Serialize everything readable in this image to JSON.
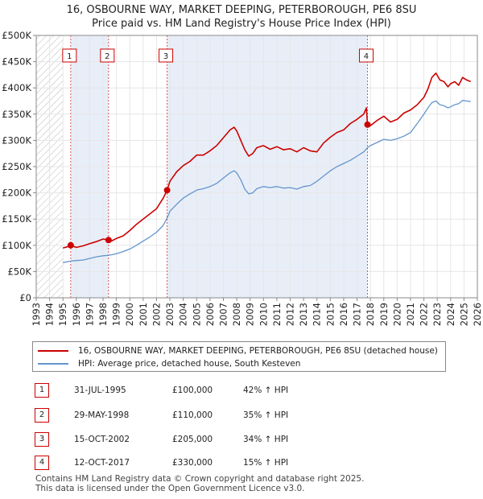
{
  "title_line1": "16, OSBOURNE WAY, MARKET DEEPING, PETERBOROUGH, PE6 8SU",
  "title_line2": "Price paid vs. HM Land Registry's House Price Index (HPI)",
  "colors": {
    "property": "#cc0000",
    "hpi": "#6495cd",
    "axis": "#888888",
    "shade": "#e8eef8",
    "hatch": "#bbbbbb",
    "marker_line": "#dd5555"
  },
  "chart_data": {
    "type": "line",
    "title": "16, OSBOURNE WAY, MARKET DEEPING, PETERBOROUGH, PE6 8SU — Price paid vs. HM Land Registry's House Price Index (HPI)",
    "xlim": [
      1993,
      2026
    ],
    "ylim": [
      0,
      500000
    ],
    "x_ticks": [
      1993,
      1994,
      1995,
      1996,
      1997,
      1998,
      1999,
      2000,
      2001,
      2002,
      2003,
      2004,
      2005,
      2006,
      2007,
      2008,
      2009,
      2010,
      2011,
      2012,
      2013,
      2014,
      2015,
      2016,
      2017,
      2018,
      2019,
      2020,
      2021,
      2022,
      2023,
      2024,
      2025,
      2026
    ],
    "y_ticks": [
      {
        "value": 0,
        "label": "£0"
      },
      {
        "value": 50000,
        "label": "£50K"
      },
      {
        "value": 100000,
        "label": "£100K"
      },
      {
        "value": 150000,
        "label": "£150K"
      },
      {
        "value": 200000,
        "label": "£200K"
      },
      {
        "value": 250000,
        "label": "£250K"
      },
      {
        "value": 300000,
        "label": "£300K"
      },
      {
        "value": 350000,
        "label": "£350K"
      },
      {
        "value": 400000,
        "label": "£400K"
      },
      {
        "value": 450000,
        "label": "£450K"
      },
      {
        "value": 500000,
        "label": "£500K"
      }
    ],
    "no_data_before": 1995.0,
    "shaded_regions": [
      [
        1995.58,
        1998.41
      ],
      [
        2002.79,
        2017.78
      ]
    ],
    "series": [
      {
        "name": "property",
        "label": "16, OSBOURNE WAY, MARKET DEEPING, PETERBOROUGH, PE6 8SU (detached house)",
        "x": [
          1995.0,
          1995.3,
          1995.58,
          1995.8,
          1996.0,
          1996.5,
          1997.0,
          1997.5,
          1998.0,
          1998.41,
          1998.6,
          1999.0,
          1999.5,
          2000.0,
          2000.5,
          2001.0,
          2001.5,
          2002.0,
          2002.5,
          2002.79,
          2003.0,
          2003.5,
          2004.0,
          2004.5,
          2005.0,
          2005.5,
          2006.0,
          2006.5,
          2007.0,
          2007.5,
          2007.8,
          2008.0,
          2008.3,
          2008.6,
          2008.9,
          2009.2,
          2009.5,
          2010.0,
          2010.5,
          2011.0,
          2011.5,
          2012.0,
          2012.5,
          2013.0,
          2013.5,
          2014.0,
          2014.5,
          2015.0,
          2015.5,
          2016.0,
          2016.5,
          2017.0,
          2017.5,
          2017.7,
          2017.78,
          2018.0,
          2018.5,
          2019.0,
          2019.5,
          2020.0,
          2020.5,
          2021.0,
          2021.5,
          2022.0,
          2022.3,
          2022.6,
          2022.9,
          2023.2,
          2023.5,
          2023.8,
          2024.0,
          2024.3,
          2024.6,
          2024.9,
          2025.2,
          2025.5
        ],
        "values": [
          95000,
          97000,
          100000,
          98000,
          96000,
          99000,
          103000,
          107000,
          112000,
          110000,
          108000,
          113000,
          118000,
          128000,
          140000,
          150000,
          160000,
          170000,
          190000,
          205000,
          222000,
          240000,
          252000,
          260000,
          272000,
          272000,
          280000,
          290000,
          305000,
          320000,
          325000,
          318000,
          300000,
          282000,
          270000,
          275000,
          286000,
          290000,
          283000,
          288000,
          282000,
          284000,
          278000,
          286000,
          280000,
          278000,
          295000,
          306000,
          315000,
          320000,
          332000,
          340000,
          350000,
          362000,
          330000,
          328000,
          338000,
          346000,
          335000,
          340000,
          352000,
          358000,
          368000,
          382000,
          398000,
          420000,
          428000,
          415000,
          412000,
          402000,
          408000,
          412000,
          405000,
          420000,
          415000,
          412000
        ]
      },
      {
        "name": "hpi",
        "label": "HPI: Average price, detached house, South Kesteven",
        "x": [
          1995.0,
          1995.58,
          1996.0,
          1996.5,
          1997.0,
          1997.5,
          1998.0,
          1998.41,
          1999.0,
          1999.5,
          2000.0,
          2000.5,
          2001.0,
          2001.5,
          2002.0,
          2002.5,
          2002.79,
          2003.0,
          2003.5,
          2004.0,
          2004.5,
          2005.0,
          2005.5,
          2006.0,
          2006.5,
          2007.0,
          2007.5,
          2007.8,
          2008.0,
          2008.3,
          2008.6,
          2008.9,
          2009.2,
          2009.5,
          2010.0,
          2010.5,
          2011.0,
          2011.5,
          2012.0,
          2012.5,
          2013.0,
          2013.5,
          2014.0,
          2014.5,
          2015.0,
          2015.5,
          2016.0,
          2016.5,
          2017.0,
          2017.5,
          2017.78,
          2018.0,
          2018.5,
          2019.0,
          2019.5,
          2020.0,
          2020.5,
          2021.0,
          2021.5,
          2022.0,
          2022.3,
          2022.6,
          2022.9,
          2023.2,
          2023.5,
          2023.8,
          2024.0,
          2024.3,
          2024.6,
          2024.9,
          2025.2,
          2025.5
        ],
        "values": [
          67000,
          70000,
          71000,
          72000,
          75000,
          78000,
          80000,
          81000,
          84000,
          88000,
          93000,
          100000,
          108000,
          116000,
          125000,
          138000,
          152000,
          165000,
          178000,
          190000,
          198000,
          205000,
          208000,
          212000,
          218000,
          228000,
          238000,
          242000,
          238000,
          225000,
          207000,
          198000,
          200000,
          208000,
          212000,
          210000,
          212000,
          209000,
          210000,
          207000,
          212000,
          214000,
          222000,
          232000,
          242000,
          250000,
          256000,
          262000,
          270000,
          278000,
          286000,
          290000,
          296000,
          302000,
          300000,
          303000,
          308000,
          315000,
          332000,
          350000,
          362000,
          372000,
          375000,
          368000,
          366000,
          362000,
          364000,
          368000,
          370000,
          376000,
          375000,
          374000
        ]
      }
    ],
    "sales": [
      {
        "id": "1",
        "x": 1995.58,
        "value": 100000,
        "date": "31-JUL-1995",
        "price": "£100,000",
        "hpi_change": "42% ↑ HPI"
      },
      {
        "id": "2",
        "x": 1998.41,
        "value": 110000,
        "date": "29-MAY-1998",
        "price": "£110,000",
        "hpi_change": "35% ↑ HPI"
      },
      {
        "id": "3",
        "x": 2002.79,
        "value": 205000,
        "date": "15-OCT-2002",
        "price": "£205,000",
        "hpi_change": "34% ↑ HPI"
      },
      {
        "id": "4",
        "x": 2017.78,
        "value": 330000,
        "date": "12-OCT-2017",
        "price": "£330,000",
        "hpi_change": "15% ↑ HPI"
      }
    ],
    "legend": [
      {
        "key": "property",
        "label": "16, OSBOURNE WAY, MARKET DEEPING, PETERBOROUGH, PE6 8SU (detached house)"
      },
      {
        "key": "hpi",
        "label": "HPI: Average price, detached house, South Kesteven"
      }
    ]
  },
  "footer_line1": "Contains HM Land Registry data © Crown copyright and database right 2025.",
  "footer_line2": "This data is licensed under the Open Government Licence v3.0."
}
